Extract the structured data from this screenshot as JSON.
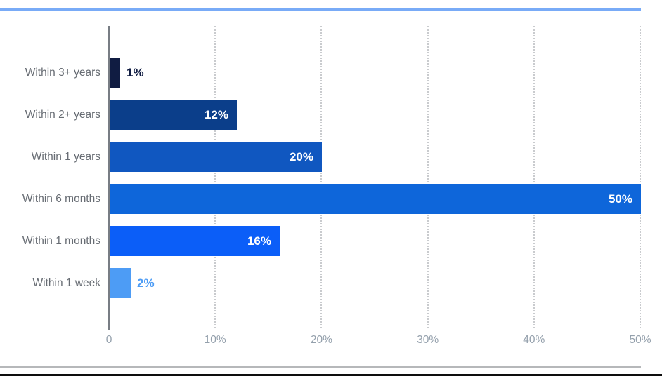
{
  "colors": {
    "background": "#ffffff",
    "top_rule": "#79abf7",
    "bottom_rule": "#b6b8ba",
    "bottom_edge": "#0e0e0e",
    "axis_line": "#787d84",
    "gridline": "#c9cbce",
    "category_label": "#676c73",
    "tick_label": "#94a0ac",
    "value_label_inside": "#ffffff"
  },
  "chart_data": {
    "type": "bar",
    "orientation": "horizontal",
    "title": "",
    "xlabel": "",
    "ylabel": "",
    "categories": [
      "Within 3+ years",
      "Within 2+ years",
      "Within 1 years",
      "Within 6 months",
      "Within 1 months",
      "Within 1 week"
    ],
    "values": [
      1,
      12,
      20,
      50,
      16,
      2
    ],
    "value_labels": [
      "1%",
      "12%",
      "20%",
      "50%",
      "16%",
      "2%"
    ],
    "bar_colors": [
      "#101c42",
      "#0b3e8a",
      "#1057c0",
      "#0e66da",
      "#0b5ef8",
      "#4d9cf5"
    ],
    "x_ticks": [
      {
        "label": "0",
        "value": 0
      },
      {
        "label": "10%",
        "value": 10
      },
      {
        "label": "20%",
        "value": 20
      },
      {
        "label": "30%",
        "value": 30
      },
      {
        "label": "40%",
        "value": 40
      },
      {
        "label": "50%",
        "value": 50
      }
    ],
    "xlim": [
      0,
      50
    ],
    "grid": "vertical-dotted",
    "legend": "none"
  }
}
